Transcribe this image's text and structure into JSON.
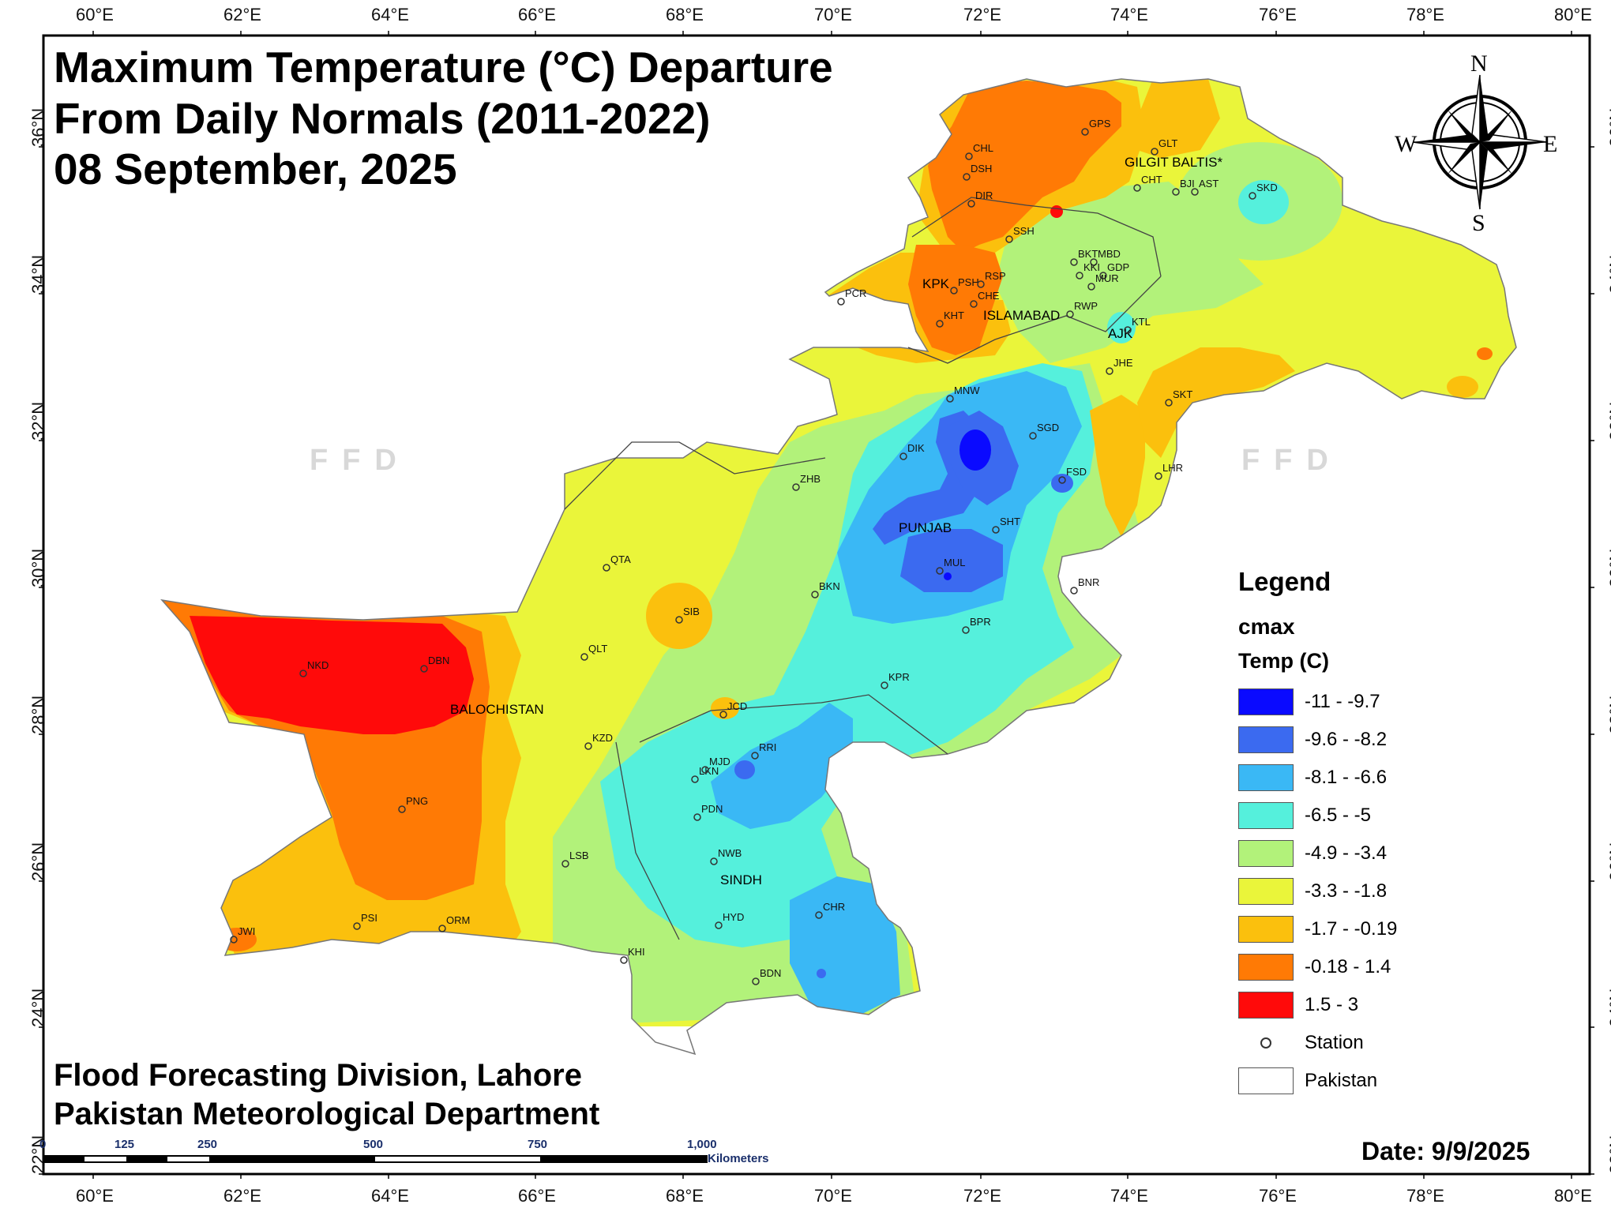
{
  "title": {
    "line1": "Maximum Temperature (°C) Departure",
    "line2": "From Daily Normals (2011-2022)",
    "line3": "08 September, 2025"
  },
  "footer": {
    "line1": "Flood Forecasting Division, Lahore",
    "line2": "Pakistan Meteorological Department",
    "date": "Date: 9/9/2025"
  },
  "longitude_ticks": [
    "60°E",
    "62°E",
    "64°E",
    "66°E",
    "68°E",
    "70°E",
    "72°E",
    "74°E",
    "76°E",
    "78°E",
    "80°E"
  ],
  "latitude_ticks": [
    "36°N",
    "34°N",
    "32°N",
    "30°N",
    "28°N",
    "26°N",
    "24°N",
    "22°N"
  ],
  "compass": {
    "n": "N",
    "s": "S",
    "e": "E",
    "w": "W"
  },
  "watermark": "FFD",
  "legend": {
    "title": "Legend",
    "field": "cmax",
    "unit": "Temp (C)",
    "classes": [
      {
        "label": "-11 - -9.7",
        "color": "#0a0aff"
      },
      {
        "label": "-9.6 - -8.2",
        "color": "#3b6af0"
      },
      {
        "label": "-8.1 - -6.6",
        "color": "#3ab8f5"
      },
      {
        "label": "-6.5 - -5",
        "color": "#55f0dc"
      },
      {
        "label": "-4.9 - -3.4",
        "color": "#b2f27a"
      },
      {
        "label": "-3.3 - -1.8",
        "color": "#eaf53a"
      },
      {
        "label": "-1.7 - -0.19",
        "color": "#fbc00d"
      },
      {
        "label": "-0.18 - 1.4",
        "color": "#ff7a05"
      },
      {
        "label": "1.5 - 3",
        "color": "#ff0a0a"
      }
    ],
    "station_label": "Station",
    "pakistan_label": "Pakistan"
  },
  "regions": [
    "GILGIT BALTIS*",
    "KPK",
    "ISLAMABAD",
    "AJK",
    "PUNJAB",
    "BALOCHISTAN",
    "SINDH"
  ],
  "stations": [
    "GPS",
    "GLT",
    "CHL",
    "DSH",
    "DIR",
    "CHT",
    "BJI",
    "AST",
    "SKD",
    "SSH",
    "PSH",
    "RSP",
    "CHE",
    "BKT",
    "MBD",
    "KKI",
    "GDP",
    "MUR",
    "RWP",
    "KHT",
    "PCR",
    "KTL",
    "JHE",
    "SKT",
    "MNW",
    "SGD",
    "DIK",
    "FSD",
    "LHR",
    "ZHB",
    "SHT",
    "QTA",
    "MUL",
    "BNR",
    "SIB",
    "BKN",
    "BPR",
    "QLT",
    "KPR",
    "NKD",
    "DBN",
    "JCD",
    "KZD",
    "RRI",
    "LKN",
    "MJD",
    "PDN",
    "PNG",
    "NWB",
    "LSB",
    "HYD",
    "CHR",
    "JWI",
    "PSI",
    "ORM",
    "KHI",
    "BDN"
  ],
  "scale_bar": {
    "ticks": [
      "0",
      "125",
      "250",
      "500",
      "750",
      "1,000"
    ],
    "unit": "Kilometers"
  }
}
